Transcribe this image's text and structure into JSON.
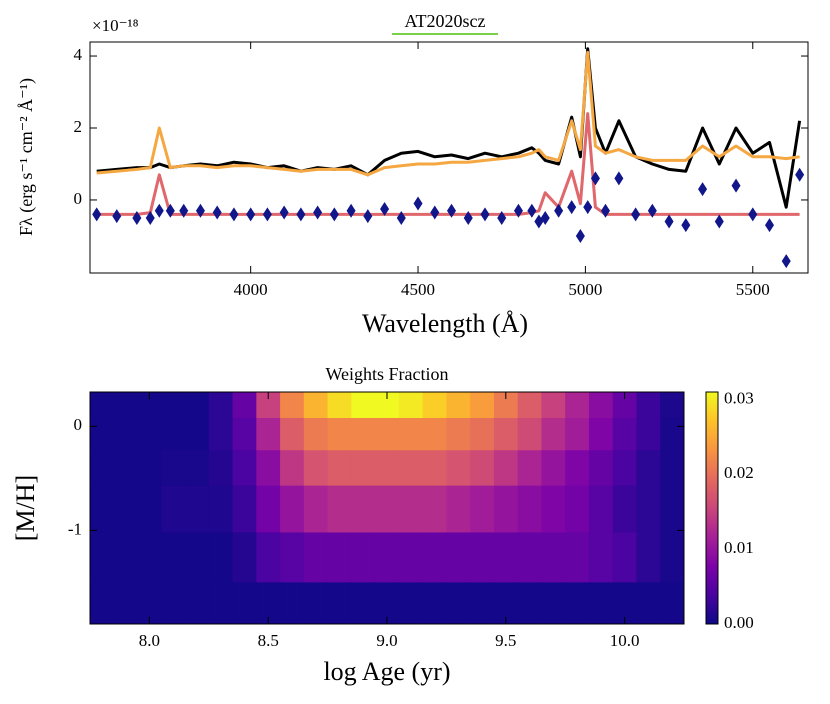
{
  "chart_data": [
    {
      "type": "line",
      "title": "AT2020scz",
      "offset_label": "×10⁻¹⁸",
      "xlabel": "Wavelength (Å)",
      "ylabel": "Fλ (erg s⁻¹ cm⁻² Å⁻¹)",
      "xlim": [
        3520,
        5665
      ],
      "ylim": [
        -2.03,
        4.39
      ],
      "xticks": [
        4000,
        4500,
        5000,
        5500
      ],
      "yticks": [
        0,
        2,
        4
      ],
      "x": [
        3540,
        3600,
        3660,
        3700,
        3727,
        3760,
        3800,
        3850,
        3900,
        3950,
        4000,
        4050,
        4100,
        4150,
        4200,
        4250,
        4300,
        4350,
        4400,
        4450,
        4500,
        4550,
        4600,
        4650,
        4700,
        4750,
        4800,
        4840,
        4861,
        4880,
        4920,
        4959,
        4985,
        5007,
        5030,
        5060,
        5100,
        5150,
        5200,
        5250,
        5300,
        5350,
        5400,
        5450,
        5500,
        5550,
        5600,
        5640
      ],
      "series": [
        {
          "color": "#000000",
          "style": "line",
          "values": [
            0.8,
            0.85,
            0.9,
            0.9,
            1.0,
            0.9,
            0.95,
            1.0,
            0.95,
            1.05,
            1.0,
            0.9,
            0.95,
            0.8,
            0.9,
            0.85,
            0.95,
            0.7,
            1.1,
            1.3,
            1.35,
            1.2,
            1.25,
            1.15,
            1.3,
            1.2,
            1.3,
            1.45,
            1.3,
            1.1,
            1.0,
            2.3,
            1.2,
            4.2,
            2.0,
            1.3,
            2.2,
            1.2,
            1.0,
            0.85,
            0.8,
            2.0,
            1.0,
            2.0,
            1.3,
            1.6,
            -0.2,
            2.2
          ]
        },
        {
          "color": "#f5a742",
          "style": "line",
          "values": [
            0.75,
            0.8,
            0.85,
            0.9,
            2.0,
            0.9,
            0.95,
            0.95,
            0.9,
            0.95,
            0.95,
            0.9,
            0.85,
            0.8,
            0.85,
            0.85,
            0.85,
            0.7,
            0.9,
            0.95,
            1.0,
            1.0,
            1.05,
            1.05,
            1.1,
            1.15,
            1.2,
            1.3,
            1.4,
            1.2,
            1.1,
            2.2,
            1.4,
            4.1,
            1.5,
            1.3,
            1.4,
            1.2,
            1.1,
            1.1,
            1.1,
            1.5,
            1.2,
            1.5,
            1.2,
            1.2,
            1.15,
            1.2
          ]
        },
        {
          "color": "#e0676b",
          "style": "line",
          "values": [
            -0.4,
            -0.4,
            -0.4,
            -0.35,
            0.7,
            -0.4,
            -0.4,
            -0.4,
            -0.4,
            -0.4,
            -0.4,
            -0.4,
            -0.4,
            -0.4,
            -0.4,
            -0.4,
            -0.4,
            -0.4,
            -0.4,
            -0.4,
            -0.4,
            -0.4,
            -0.4,
            -0.4,
            -0.4,
            -0.4,
            -0.4,
            -0.35,
            -0.3,
            0.2,
            -0.2,
            0.8,
            -0.1,
            2.4,
            -0.2,
            -0.4,
            -0.4,
            -0.4,
            -0.4,
            -0.4,
            -0.4,
            -0.4,
            -0.4,
            -0.4,
            -0.4,
            -0.4,
            -0.4,
            -0.4
          ]
        },
        {
          "color": "#11168a",
          "style": "diamond",
          "values": [
            -0.4,
            -0.45,
            -0.5,
            -0.5,
            -0.3,
            -0.3,
            -0.3,
            -0.3,
            -0.35,
            -0.4,
            -0.4,
            -0.4,
            -0.35,
            -0.4,
            -0.35,
            -0.4,
            -0.3,
            -0.45,
            -0.25,
            -0.5,
            -0.1,
            -0.35,
            -0.3,
            -0.5,
            -0.4,
            -0.5,
            -0.3,
            -0.3,
            -0.6,
            -0.5,
            -0.3,
            -0.2,
            -1.0,
            -0.2,
            0.6,
            -0.3,
            0.6,
            -0.4,
            -0.3,
            -0.6,
            -0.7,
            0.3,
            -0.6,
            0.4,
            -0.4,
            -0.7,
            -1.7,
            0.7
          ]
        }
      ]
    },
    {
      "type": "heatmap",
      "title": "Weights Fraction",
      "xlabel": "log Age (yr)",
      "ylabel": "[M/H]",
      "colormap": "plasma",
      "xlim": [
        7.75,
        10.25
      ],
      "ylim": [
        -1.9,
        0.33
      ],
      "xticks": [
        {
          "value": 8,
          "label": "8.0"
        },
        8.5,
        {
          "value": 9,
          "label": "9.0"
        },
        9.5,
        {
          "value": 10,
          "label": "10.0"
        }
      ],
      "yticks": [
        0,
        -1
      ],
      "clim": [
        0,
        0.031
      ],
      "cticks": [
        {
          "value": 0,
          "label": "0.00"
        },
        0.01,
        0.02,
        0.03
      ],
      "x_edges": [
        7.75,
        7.85,
        7.95,
        8.05,
        8.15,
        8.25,
        8.35,
        8.45,
        8.55,
        8.65,
        8.75,
        8.85,
        8.95,
        9.05,
        9.15,
        9.25,
        9.35,
        9.45,
        9.55,
        9.65,
        9.75,
        9.85,
        9.95,
        10.05,
        10.15,
        10.25
      ],
      "y_edges": [
        0.33,
        0.08,
        -0.23,
        -0.57,
        -1.02,
        -1.5,
        -1.9
      ],
      "z": [
        [
          0.0005,
          0.0005,
          0.0005,
          0.0005,
          0.0005,
          0.002,
          0.006,
          0.015,
          0.022,
          0.026,
          0.029,
          0.031,
          0.031,
          0.03,
          0.028,
          0.026,
          0.024,
          0.021,
          0.018,
          0.015,
          0.012,
          0.009,
          0.006,
          0.003,
          0.001
        ],
        [
          0.0005,
          0.0005,
          0.0005,
          0.0005,
          0.0005,
          0.002,
          0.005,
          0.012,
          0.018,
          0.021,
          0.022,
          0.022,
          0.022,
          0.022,
          0.022,
          0.021,
          0.02,
          0.018,
          0.016,
          0.013,
          0.011,
          0.008,
          0.005,
          0.003,
          0.0008
        ],
        [
          0.0005,
          0.0005,
          0.0005,
          0.0008,
          0.0008,
          0.0015,
          0.004,
          0.009,
          0.014,
          0.017,
          0.018,
          0.018,
          0.018,
          0.018,
          0.018,
          0.017,
          0.016,
          0.014,
          0.012,
          0.01,
          0.008,
          0.006,
          0.004,
          0.002,
          0.0008
        ],
        [
          0.0005,
          0.0005,
          0.0005,
          0.0012,
          0.0012,
          0.0012,
          0.003,
          0.007,
          0.01,
          0.012,
          0.013,
          0.013,
          0.013,
          0.013,
          0.013,
          0.012,
          0.011,
          0.01,
          0.009,
          0.008,
          0.007,
          0.005,
          0.003,
          0.002,
          0.0008
        ],
        [
          0.0005,
          0.0005,
          0.0005,
          0.0005,
          0.0005,
          0.0005,
          0.0015,
          0.004,
          0.005,
          0.006,
          0.006,
          0.006,
          0.006,
          0.006,
          0.006,
          0.006,
          0.006,
          0.006,
          0.006,
          0.006,
          0.006,
          0.005,
          0.004,
          0.002,
          0.0008
        ],
        [
          0.0005,
          0.0005,
          0.0005,
          0.0005,
          0.0005,
          0.0005,
          0.0005,
          0.0005,
          0.0005,
          0.0005,
          0.0005,
          0.0005,
          0.0005,
          0.0005,
          0.0005,
          0.0005,
          0.0005,
          0.0005,
          0.0005,
          0.0005,
          0.0005,
          0.0005,
          0.0005,
          0.0005,
          0.0005
        ]
      ]
    }
  ]
}
